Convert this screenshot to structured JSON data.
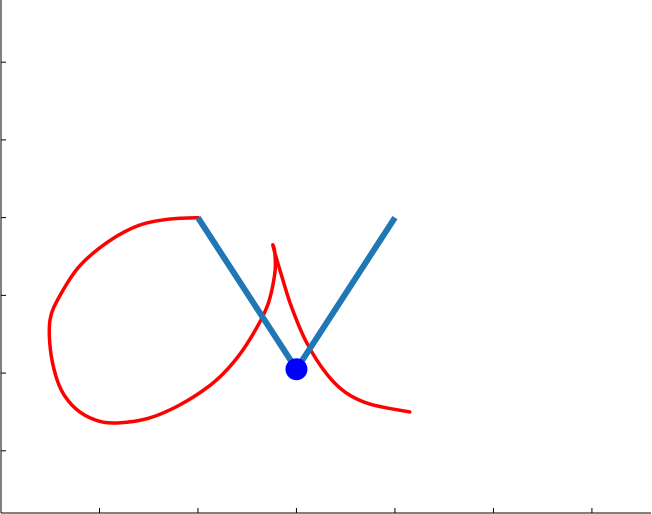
{
  "chart_data": {
    "type": "line",
    "title": "",
    "xlabel": "",
    "ylabel": "",
    "xlim": [
      -2,
      4.6
    ],
    "ylim": [
      -3.8,
      2.8
    ],
    "x_ticks": [
      -1,
      0,
      1,
      2,
      3,
      4
    ],
    "y_ticks": [
      -3,
      -2,
      -1,
      0,
      1,
      2
    ],
    "grid": false,
    "series": [
      {
        "kind": "curve",
        "color": "#ff0000",
        "points": [
          [
            0,
            0
          ],
          [
            -0.3,
            -0.02
          ],
          [
            -0.6,
            -0.1
          ],
          [
            -0.9,
            -0.3
          ],
          [
            -1.2,
            -0.62
          ],
          [
            -1.4,
            -1.0
          ],
          [
            -1.5,
            -1.3
          ],
          [
            -1.5,
            -1.68
          ],
          [
            -1.44,
            -2.05
          ],
          [
            -1.35,
            -2.3
          ],
          [
            -1.2,
            -2.5
          ],
          [
            -1.0,
            -2.62
          ],
          [
            -0.8,
            -2.64
          ],
          [
            -0.5,
            -2.58
          ],
          [
            -0.2,
            -2.42
          ],
          [
            0.1,
            -2.18
          ],
          [
            0.3,
            -1.95
          ],
          [
            0.5,
            -1.62
          ],
          [
            0.7,
            -1.15
          ],
          [
            0.78,
            -0.72
          ],
          [
            0.78,
            -0.45
          ],
          [
            0.76,
            -0.35
          ],
          [
            0.78,
            -0.45
          ],
          [
            0.85,
            -0.75
          ],
          [
            0.95,
            -1.15
          ],
          [
            1.1,
            -1.6
          ],
          [
            1.3,
            -2.0
          ],
          [
            1.5,
            -2.25
          ],
          [
            1.75,
            -2.4
          ],
          [
            2.15,
            -2.5
          ]
        ]
      },
      {
        "kind": "pendulum-arms",
        "color": "#1f77b4",
        "points": [
          [
            0,
            0
          ],
          [
            1,
            -1.95
          ],
          [
            2,
            0
          ]
        ]
      },
      {
        "kind": "bob",
        "color": "#0000ff",
        "points": [
          [
            1,
            -1.95
          ]
        ]
      }
    ]
  }
}
